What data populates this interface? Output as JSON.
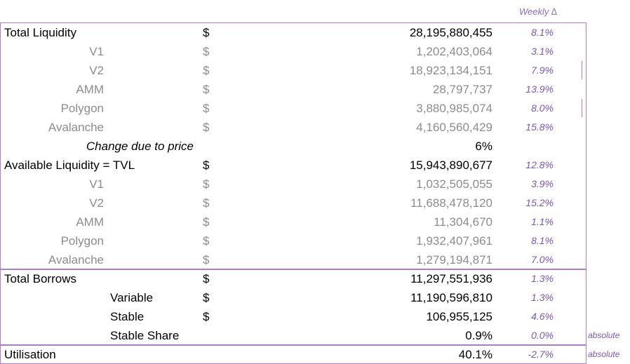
{
  "header": {
    "weekly_label": "Weekly ∆"
  },
  "rows": [
    {
      "label": "Total Liquidity",
      "dollar": "$",
      "value": "28,195,880,455",
      "weekly": "8.1%",
      "extra": ""
    },
    {
      "label": "V1",
      "dollar": "$",
      "value": "1,202,403,064",
      "weekly": "3.1%",
      "extra": ""
    },
    {
      "label": "V2",
      "dollar": "$",
      "value": "18,923,134,151",
      "weekly": "7.9%",
      "extra": ""
    },
    {
      "label": "AMM",
      "dollar": "$",
      "value": "28,797,737",
      "weekly": "13.9%",
      "extra": ""
    },
    {
      "label": "Polygon",
      "dollar": "$",
      "value": "3,880,985,074",
      "weekly": "8.0%",
      "extra": ""
    },
    {
      "label": "Avalanche",
      "dollar": "$",
      "value": "4,160,560,429",
      "weekly": "15.8%",
      "extra": ""
    },
    {
      "label": "Change due to price",
      "dollar": "",
      "value": "6%",
      "weekly": "",
      "extra": ""
    },
    {
      "label": "Available Liquidity  = TVL",
      "dollar": "$",
      "value": "15,943,890,677",
      "weekly": "12.8%",
      "extra": ""
    },
    {
      "label": "V1",
      "dollar": "$",
      "value": "1,032,505,055",
      "weekly": "3.9%",
      "extra": ""
    },
    {
      "label": "V2",
      "dollar": "$",
      "value": "11,688,478,120",
      "weekly": "15.2%",
      "extra": ""
    },
    {
      "label": "AMM",
      "dollar": "$",
      "value": "11,304,670",
      "weekly": "1.1%",
      "extra": ""
    },
    {
      "label": "Polygon",
      "dollar": "$",
      "value": "1,932,407,961",
      "weekly": "8.1%",
      "extra": ""
    },
    {
      "label": "Avalanche",
      "dollar": "$",
      "value": "1,279,194,871",
      "weekly": "7.0%",
      "extra": ""
    },
    {
      "label": "Total Borrows",
      "dollar": "$",
      "value": "11,297,551,936",
      "weekly": "1.3%",
      "extra": ""
    },
    {
      "label": "Variable",
      "dollar": "$",
      "value": "11,190,596,810",
      "weekly": "1.3%",
      "extra": ""
    },
    {
      "label": "Stable",
      "dollar": "$",
      "value": "106,955,125",
      "weekly": "4.6%",
      "extra": ""
    },
    {
      "label": "Stable Share",
      "dollar": "",
      "value": "0.9%",
      "weekly": "0.0%",
      "extra": "absolute"
    },
    {
      "label": "Utilisation",
      "dollar": "",
      "value": "40.1%",
      "weekly": "-2.7%",
      "extra": "absolute"
    }
  ]
}
